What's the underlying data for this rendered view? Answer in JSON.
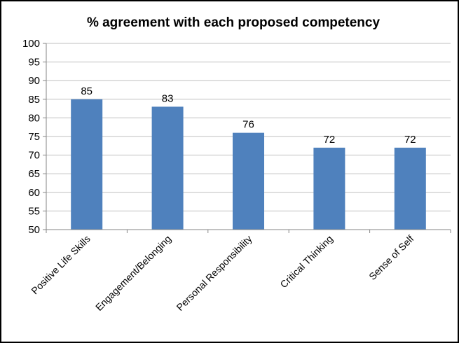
{
  "chart_data": {
    "type": "bar",
    "title": "% agreement with each proposed competency",
    "xlabel": "",
    "ylabel": "",
    "categories": [
      "Positive Life Skills",
      "Engagement/Belonging",
      "Personal Responsibility",
      "Critical Thinking",
      "Sense of Self"
    ],
    "values": [
      85,
      83,
      76,
      72,
      72
    ],
    "data_labels": [
      "85",
      "83",
      "76",
      "72",
      "72"
    ],
    "ylim": [
      50,
      100
    ],
    "yticks": [
      "50",
      "55",
      "60",
      "65",
      "70",
      "75",
      "80",
      "85",
      "90",
      "95",
      "100"
    ],
    "grid": true,
    "legend": "none",
    "colors": {
      "bar": "#4f81bd",
      "grid": "#bfbfbf",
      "axis": "#868686"
    }
  }
}
